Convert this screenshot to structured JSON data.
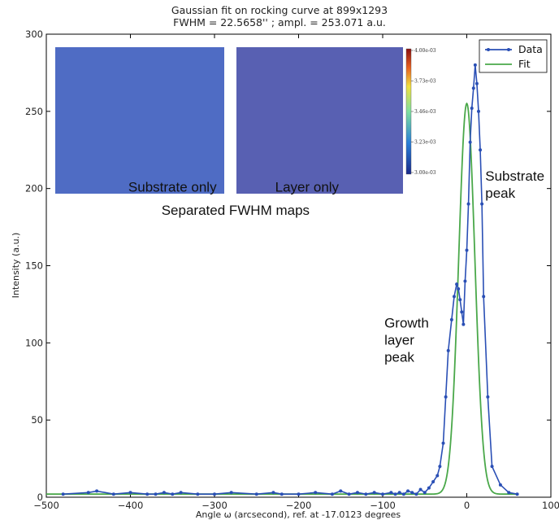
{
  "chart_data": {
    "type": "line",
    "title": "Gaussian fit on rocking curve at 899x1293",
    "subtitle": "FWHM = 22.5658'' ; ampl. = 253.071 a.u.",
    "xlabel": "Angle ω (arcsecond), ref. at -17.0123 degrees",
    "ylabel": "Intensity (a.u.)",
    "xlim": [
      -500,
      100
    ],
    "ylim": [
      0,
      300
    ],
    "xticks": [
      -500,
      -400,
      -300,
      -200,
      -100,
      0,
      100
    ],
    "yticks": [
      0,
      50,
      100,
      150,
      200,
      250,
      300
    ],
    "grid": false,
    "legend": "top-right",
    "series": [
      {
        "name": "Data",
        "color": "#2a4fb5",
        "marker": "dot",
        "x": [
          -480,
          -450,
          -440,
          -420,
          -400,
          -380,
          -370,
          -360,
          -350,
          -340,
          -320,
          -300,
          -280,
          -250,
          -230,
          -220,
          -200,
          -180,
          -160,
          -150,
          -140,
          -130,
          -120,
          -110,
          -100,
          -90,
          -85,
          -80,
          -75,
          -70,
          -65,
          -60,
          -55,
          -50,
          -45,
          -40,
          -35,
          -32,
          -28,
          -25,
          -22,
          -18,
          -15,
          -12,
          -10,
          -8,
          -6,
          -4,
          -2,
          0,
          2,
          4,
          6,
          8,
          10,
          12,
          14,
          16,
          18,
          20,
          25,
          30,
          40,
          50,
          60
        ],
        "y": [
          2,
          3,
          4,
          2,
          3,
          2,
          2,
          3,
          2,
          3,
          2,
          2,
          3,
          2,
          3,
          2,
          2,
          3,
          2,
          4,
          2,
          3,
          2,
          3,
          2,
          3,
          2,
          3,
          2,
          4,
          3,
          2,
          5,
          3,
          6,
          10,
          14,
          20,
          35,
          65,
          95,
          115,
          130,
          138,
          135,
          128,
          120,
          112,
          140,
          160,
          190,
          230,
          252,
          265,
          280,
          268,
          250,
          225,
          190,
          130,
          65,
          20,
          8,
          3,
          2
        ]
      },
      {
        "name": "Fit",
        "color": "#4aa84a",
        "model": "gaussian",
        "amplitude": 253.071,
        "center": 0,
        "fwhm": 22.5658,
        "baseline": 2,
        "range": [
          -500,
          60
        ]
      }
    ],
    "annotations": [
      {
        "lines": [
          "Substrate only"
        ],
        "x": -350,
        "y": 198
      },
      {
        "lines": [
          "Layer only"
        ],
        "x": -190,
        "y": 198
      },
      {
        "lines": [
          "Separated FWHM maps"
        ],
        "x": -275,
        "y": 183
      },
      {
        "lines": [
          "Growth",
          "layer",
          "peak"
        ],
        "x": -98,
        "y": 110
      },
      {
        "lines": [
          "Substrate",
          "peak"
        ],
        "x": 22,
        "y": 205
      }
    ],
    "insets": [
      {
        "name": "substrate-map",
        "label": "Substrate only"
      },
      {
        "name": "layer-map",
        "label": "Layer only",
        "colorbar_ticks": [
          "4.00e-03",
          "3.73e-03",
          "3.46e-03",
          "3.23e-03",
          "3.00e-03"
        ]
      }
    ]
  }
}
